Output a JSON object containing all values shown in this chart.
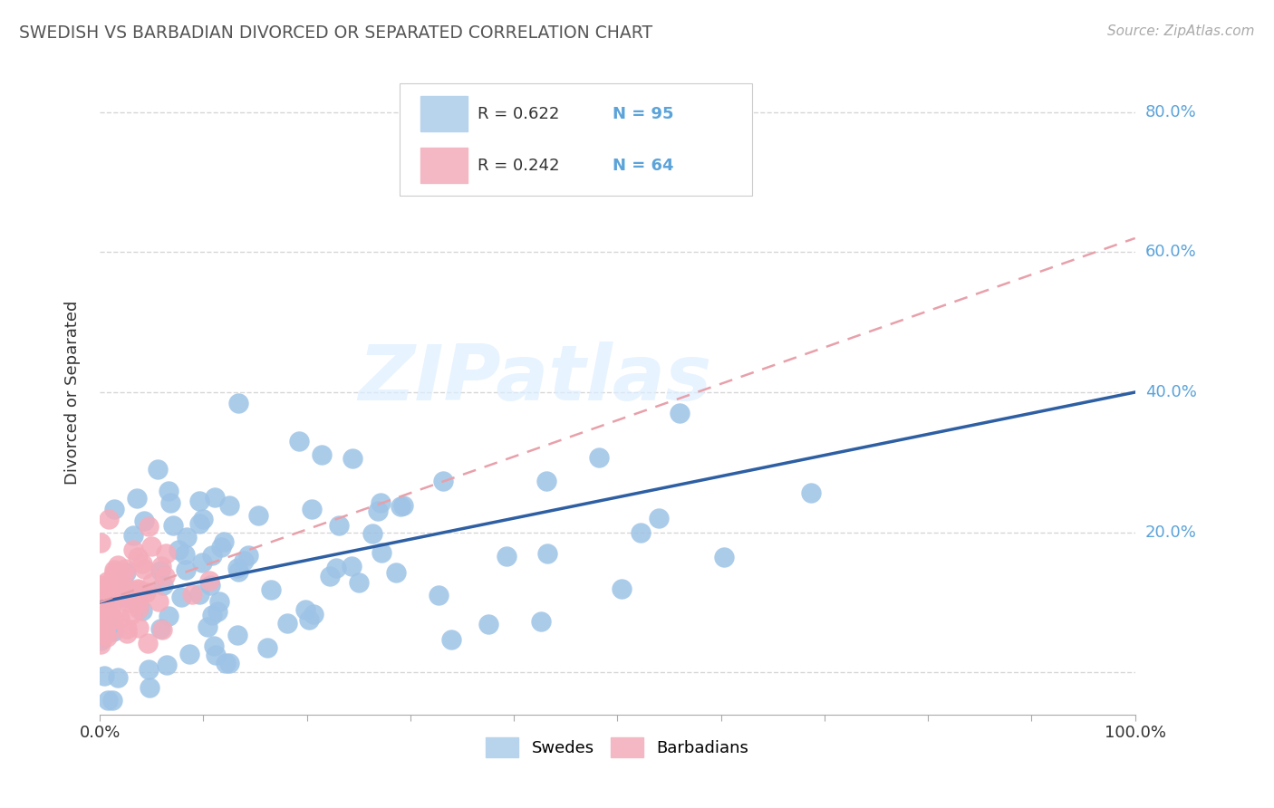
{
  "title": "SWEDISH VS BARBADIAN DIVORCED OR SEPARATED CORRELATION CHART",
  "source": "Source: ZipAtlas.com",
  "ylabel": "Divorced or Separated",
  "blue_color": "#9DC3E6",
  "blue_edge_color": "#9DC3E6",
  "pink_color": "#F4ACBA",
  "pink_edge_color": "#F4ACBA",
  "blue_line_color": "#2E5FA3",
  "pink_line_color": "#E8A0AA",
  "ytick_color": "#5BA3D9",
  "title_color": "#555555",
  "watermark": "ZIPatlas",
  "legend_r1": "R = 0.622",
  "legend_n1": "N = 95",
  "legend_r2": "R = 0.242",
  "legend_n2": "N = 64",
  "swedes_trend_x": [
    0.0,
    1.0
  ],
  "swedes_trend_y": [
    0.1,
    0.4
  ],
  "barbadians_trend_x": [
    0.0,
    1.0
  ],
  "barbadians_trend_y": [
    0.1,
    0.62
  ],
  "xlim": [
    0.0,
    1.0
  ],
  "ylim": [
    -0.06,
    0.86
  ],
  "ytick_positions": [
    0.0,
    0.2,
    0.4,
    0.6,
    0.8
  ],
  "ytick_labels": [
    "",
    "20.0%",
    "40.0%",
    "60.0%",
    "80.0%"
  ]
}
